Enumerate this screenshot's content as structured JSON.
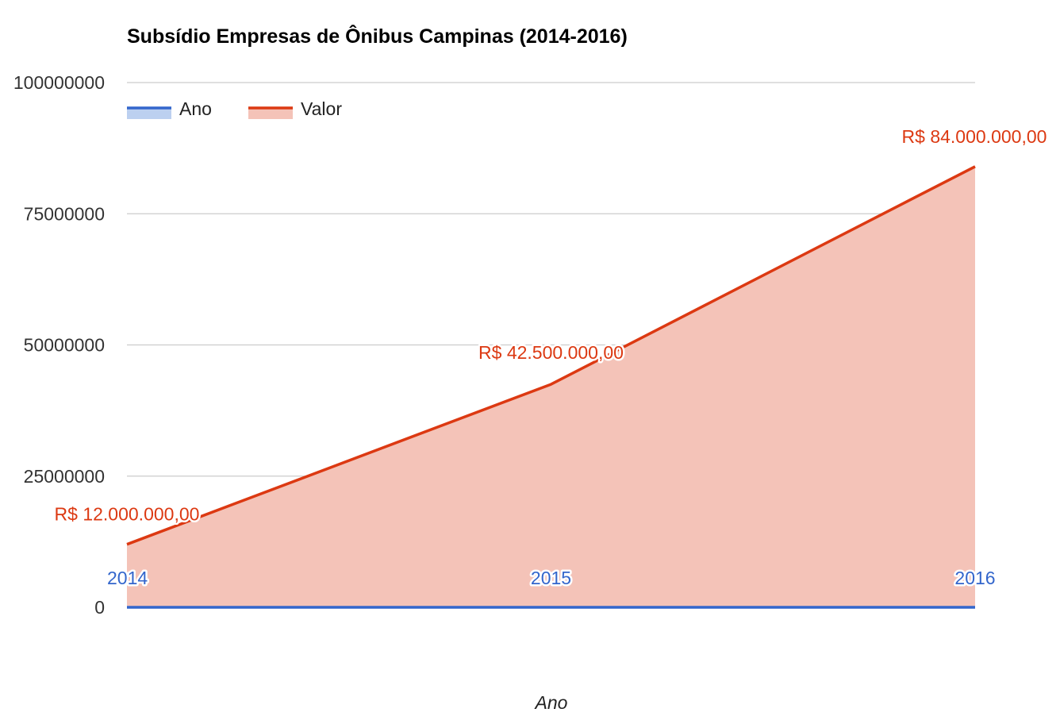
{
  "chart_data": {
    "type": "area",
    "title": "Subsídio Empresas de Ônibus Campinas (2014-2016)",
    "xlabel": "Ano",
    "ylabel": "",
    "ylim": [
      0,
      100000000
    ],
    "yticks": [
      "0",
      "25000000",
      "50000000",
      "75000000",
      "100000000"
    ],
    "ytick_values": [
      0,
      25000000,
      50000000,
      75000000,
      100000000
    ],
    "x": [
      2014,
      2015,
      2016
    ],
    "grid": true,
    "legend_position": "top-left",
    "series": [
      {
        "name": "Ano",
        "color": "#3366cc",
        "fill": "#bcd0f0",
        "values": [
          0,
          0,
          0
        ],
        "labels": [
          "2014",
          "2015",
          "2016"
        ]
      },
      {
        "name": "Valor",
        "color": "#dc3912",
        "fill": "#f4c3b8",
        "values": [
          12000000,
          42500000,
          84000000
        ],
        "labels": [
          "R$ 12.000.000,00",
          "R$ 42.500.000,00",
          "R$ 84.000.000,00"
        ]
      }
    ]
  }
}
